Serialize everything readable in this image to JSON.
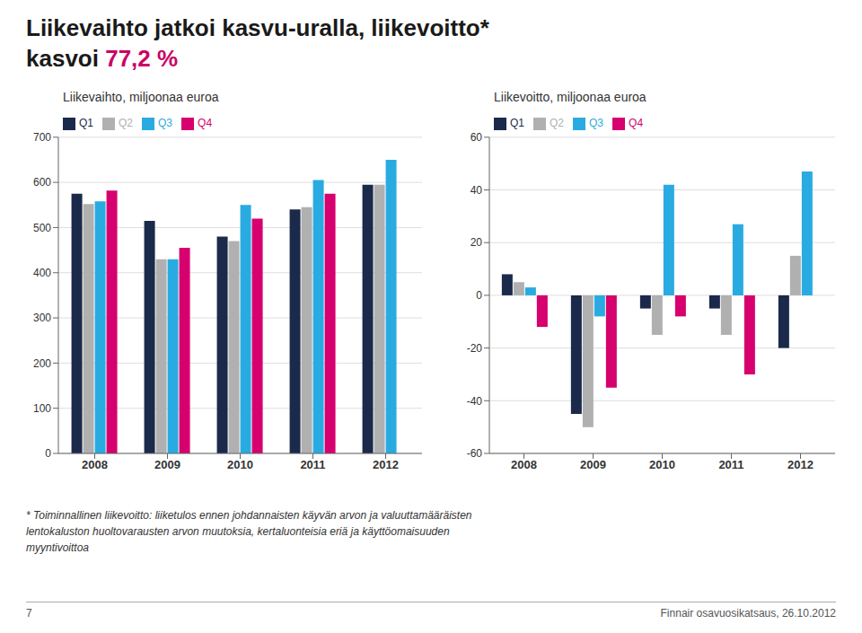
{
  "title": [
    [
      {
        "text": "Liikevaihto jatkoi kasvu-uralla, liikevoitto*"
      }
    ],
    [
      {
        "text": "kasvoi "
      },
      {
        "text": "77,2 %",
        "color": "#cc0066"
      }
    ]
  ],
  "annotations": {
    "footnote": [
      "* Toiminnallinen liikevoitto: liiketulos ennen johdannaisten käyvän arvon ja valuuttamääräisten",
      "lentokaluston huoltovarausten arvon muutoksia, kertaluonteisia eriä ja käyttöomaisuuden",
      "myyntivoittoa"
    ],
    "footer": [
      "7",
      "Finnair osavuosikatsaus, 26.10.2012"
    ]
  },
  "chart_data": [
    {
      "type": "bar",
      "title": "Liikevaihto, miljoonaa euroa",
      "categories": [
        "2008",
        "2009",
        "2010",
        "2011",
        "2012"
      ],
      "series": [
        {
          "name": "Q1",
          "color": "#1b2a4a",
          "values": [
            575,
            515,
            480,
            540,
            595
          ]
        },
        {
          "name": "Q2",
          "color": "#b0b0b0",
          "values": [
            552,
            430,
            470,
            545,
            595
          ]
        },
        {
          "name": "Q3",
          "color": "#29abe2",
          "values": [
            558,
            430,
            550,
            605,
            650
          ]
        },
        {
          "name": "Q4",
          "color": "#d6006e",
          "values": [
            582,
            455,
            520,
            575,
            null
          ]
        }
      ],
      "ylim": [
        0,
        700
      ],
      "yticks": [
        0,
        100,
        200,
        300,
        400,
        500,
        600,
        700
      ],
      "grid": true,
      "legend": "upper left"
    },
    {
      "type": "bar",
      "title": "Liikevoitto, miljoonaa euroa",
      "categories": [
        "2008",
        "2009",
        "2010",
        "2011",
        "2012"
      ],
      "series": [
        {
          "name": "Q1",
          "color": "#1b2a4a",
          "values": [
            8,
            -45,
            -5,
            -5,
            -20
          ]
        },
        {
          "name": "Q2",
          "color": "#b0b0b0",
          "values": [
            5,
            -50,
            -15,
            -15,
            15
          ]
        },
        {
          "name": "Q3",
          "color": "#29abe2",
          "values": [
            3,
            -8,
            42,
            27,
            47
          ]
        },
        {
          "name": "Q4",
          "color": "#d6006e",
          "values": [
            -12,
            -35,
            -8,
            -30,
            null
          ]
        }
      ],
      "ylim": [
        -60,
        60
      ],
      "yticks": [
        -60,
        -40,
        -20,
        0,
        20,
        40,
        60
      ],
      "grid": true,
      "legend": "upper left"
    }
  ]
}
